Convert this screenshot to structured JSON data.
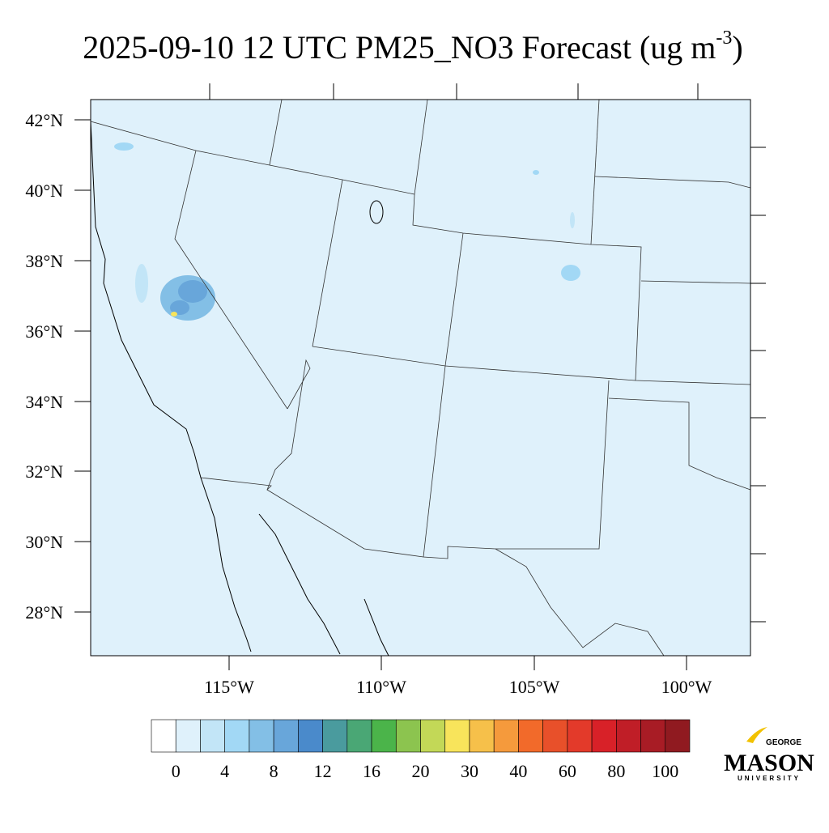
{
  "title": {
    "main": "2025-09-10 12 UTC PM25_NO3 Forecast (ug m",
    "superscript": "-3",
    "close": ")"
  },
  "map": {
    "lat_labels": [
      "42°N",
      "40°N",
      "38°N",
      "36°N",
      "34°N",
      "32°N",
      "30°N",
      "28°N"
    ],
    "lon_labels": [
      "115°W",
      "110°W",
      "105°W",
      "100°W"
    ]
  },
  "colorbar": {
    "colors": [
      "#ffffff",
      "#dff1fb",
      "#c2e5f7",
      "#a2d8f5",
      "#83bfe6",
      "#68a6da",
      "#4a8acb",
      "#4a9b9e",
      "#4aa775",
      "#4bb44a",
      "#8cc44f",
      "#c3d857",
      "#f8e45b",
      "#f6c04a",
      "#f59a3c",
      "#f26a2a",
      "#e8502a",
      "#e33a2a",
      "#d82128",
      "#c01e27",
      "#a81c25",
      "#901a20"
    ],
    "labels": [
      0,
      4,
      8,
      12,
      16,
      20,
      30,
      40,
      60,
      80,
      100
    ]
  },
  "logo": {
    "top": "GEORGE",
    "name": "MASON",
    "bottom": "UNIVERSITY"
  }
}
